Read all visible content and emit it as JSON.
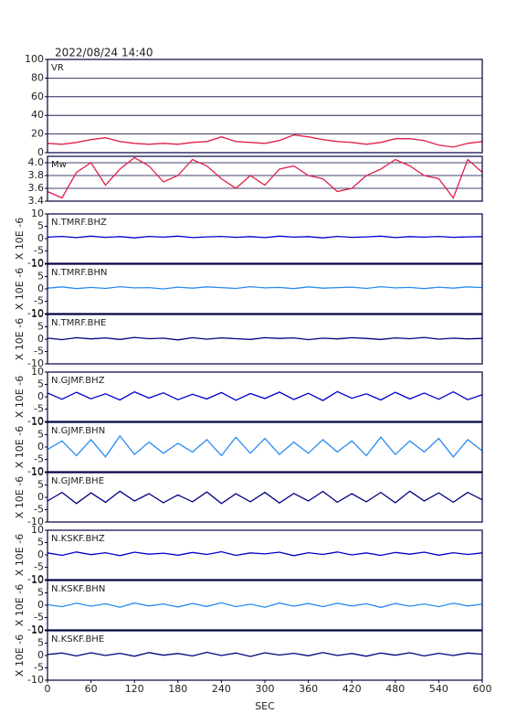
{
  "chart_data": [
    {
      "type": "line",
      "title": "2022/08/24 14:40",
      "label": "VR",
      "color": "#e0204a",
      "grid": true,
      "x": [
        0,
        20,
        40,
        60,
        80,
        100,
        120,
        140,
        160,
        180,
        200,
        220,
        240,
        260,
        280,
        300,
        320,
        340,
        360,
        380,
        400,
        420,
        440,
        460,
        480,
        500,
        520,
        540,
        560,
        580,
        600
      ],
      "values": [
        10,
        9,
        11,
        14,
        16,
        12,
        10,
        9,
        10,
        9,
        11,
        12,
        17,
        12,
        11,
        10,
        13,
        19,
        17,
        14,
        12,
        11,
        9,
        11,
        15,
        15,
        13,
        8,
        6,
        10,
        12
      ],
      "ylim": [
        0,
        100
      ],
      "yticks": [
        0,
        20,
        40,
        60,
        80,
        100
      ],
      "xlim": [
        0,
        600
      ]
    },
    {
      "type": "line",
      "label": "Mw",
      "color": "#e0204a",
      "grid": true,
      "x": [
        0,
        20,
        40,
        60,
        80,
        100,
        120,
        140,
        160,
        180,
        200,
        220,
        240,
        260,
        280,
        300,
        320,
        340,
        360,
        380,
        400,
        420,
        440,
        460,
        480,
        500,
        520,
        540,
        560,
        580,
        600
      ],
      "values": [
        3.55,
        3.45,
        3.85,
        4.0,
        3.65,
        3.9,
        4.08,
        3.95,
        3.7,
        3.8,
        4.05,
        3.95,
        3.75,
        3.6,
        3.8,
        3.65,
        3.9,
        3.95,
        3.8,
        3.75,
        3.55,
        3.6,
        3.8,
        3.9,
        4.05,
        3.95,
        3.8,
        3.75,
        3.45,
        4.05,
        3.85
      ],
      "ylim": [
        3.4,
        4.1
      ],
      "yticks": [
        3.4,
        3.6,
        3.8,
        {
          "value": 4.0,
          "label": "4.0"
        }
      ],
      "xlim": [
        0,
        600
      ]
    },
    {
      "type": "line",
      "label": "N.TMRF.BHZ",
      "ylabel": "X 10E -6",
      "color": "#0000cc",
      "grid": false,
      "x": [
        0,
        20,
        40,
        60,
        80,
        100,
        120,
        140,
        160,
        180,
        200,
        220,
        240,
        260,
        280,
        300,
        320,
        340,
        360,
        380,
        400,
        420,
        440,
        460,
        480,
        500,
        520,
        540,
        560,
        580,
        600
      ],
      "values": [
        0.6,
        0.9,
        0.4,
        1.0,
        0.5,
        0.8,
        0.3,
        0.9,
        0.6,
        1.0,
        0.4,
        0.7,
        0.9,
        0.5,
        0.8,
        0.4,
        1.0,
        0.6,
        0.8,
        0.3,
        0.9,
        0.5,
        0.7,
        1.0,
        0.4,
        0.8,
        0.6,
        0.9,
        0.5,
        0.7,
        0.8
      ],
      "ylim": [
        -10,
        10
      ],
      "yticks": [
        -10,
        -5,
        0,
        5,
        10
      ],
      "xlim": [
        0,
        600
      ]
    },
    {
      "type": "line",
      "label": "N.TMRF.BHN",
      "ylabel": "X 10E -6",
      "color": "#2a8cf0",
      "grid": false,
      "x": [
        0,
        20,
        40,
        60,
        80,
        100,
        120,
        140,
        160,
        180,
        200,
        220,
        240,
        260,
        280,
        300,
        320,
        340,
        360,
        380,
        400,
        420,
        440,
        460,
        480,
        500,
        520,
        540,
        560,
        580,
        600
      ],
      "values": [
        0.3,
        0.8,
        0.1,
        0.6,
        0.2,
        0.9,
        0.4,
        0.5,
        0.0,
        0.7,
        0.3,
        0.8,
        0.5,
        0.2,
        0.9,
        0.4,
        0.6,
        0.1,
        0.8,
        0.3,
        0.5,
        0.7,
        0.2,
        0.9,
        0.4,
        0.6,
        0.1,
        0.7,
        0.3,
        0.8,
        0.5
      ],
      "ylim": [
        -10,
        10
      ],
      "yticks": [
        -10,
        -5,
        0,
        5,
        10
      ],
      "xlim": [
        0,
        600
      ]
    },
    {
      "type": "line",
      "label": "N.TMRF.BHE",
      "ylabel": "X 10E -6",
      "color": "#000080",
      "grid": false,
      "x": [
        0,
        20,
        40,
        60,
        80,
        100,
        120,
        140,
        160,
        180,
        200,
        220,
        240,
        260,
        280,
        300,
        320,
        340,
        360,
        380,
        400,
        420,
        440,
        460,
        480,
        500,
        520,
        540,
        560,
        580,
        600
      ],
      "values": [
        0.4,
        -0.2,
        0.6,
        0.1,
        0.5,
        -0.1,
        0.7,
        0.2,
        0.4,
        -0.3,
        0.6,
        0.0,
        0.5,
        0.2,
        -0.1,
        0.6,
        0.3,
        0.5,
        -0.2,
        0.4,
        0.1,
        0.6,
        0.3,
        -0.1,
        0.5,
        0.2,
        0.7,
        0.0,
        0.4,
        0.1,
        0.3
      ],
      "ylim": [
        -10,
        10
      ],
      "yticks": [
        -10,
        -5,
        0,
        5,
        10
      ],
      "xlim": [
        0,
        600
      ]
    },
    {
      "type": "line",
      "label": "N.GJMF.BHZ",
      "ylabel": "X 10E -6",
      "color": "#0000cc",
      "grid": false,
      "x": [
        0,
        20,
        40,
        60,
        80,
        100,
        120,
        140,
        160,
        180,
        200,
        220,
        240,
        260,
        280,
        300,
        320,
        340,
        360,
        380,
        400,
        420,
        440,
        460,
        480,
        500,
        520,
        540,
        560,
        580,
        600
      ],
      "values": [
        1.5,
        -1.0,
        1.8,
        -0.8,
        1.2,
        -1.3,
        2.0,
        -0.5,
        1.6,
        -1.2,
        1.0,
        -0.9,
        1.7,
        -1.4,
        1.3,
        -0.7,
        1.9,
        -1.1,
        1.4,
        -1.5,
        2.1,
        -0.6,
        1.2,
        -1.3,
        1.8,
        -0.9,
        1.5,
        -1.0,
        2.0,
        -1.2,
        0.8
      ],
      "ylim": [
        -10,
        10
      ],
      "yticks": [
        -10,
        -5,
        0,
        5,
        10
      ],
      "xlim": [
        0,
        600
      ]
    },
    {
      "type": "line",
      "label": "N.GJMF.BHN",
      "ylabel": "X 10E -6",
      "color": "#2a8cf0",
      "grid": false,
      "x": [
        0,
        20,
        40,
        60,
        80,
        100,
        120,
        140,
        160,
        180,
        200,
        220,
        240,
        260,
        280,
        300,
        320,
        340,
        360,
        380,
        400,
        420,
        440,
        460,
        480,
        500,
        520,
        540,
        560,
        580,
        600
      ],
      "values": [
        -1,
        2.5,
        -3.5,
        3.0,
        -4.0,
        4.5,
        -3.0,
        2.0,
        -2.5,
        1.5,
        -2.0,
        3.0,
        -3.5,
        4.0,
        -2.5,
        3.5,
        -3.0,
        2.0,
        -2.5,
        3.0,
        -2.0,
        2.5,
        -3.5,
        4.0,
        -3.0,
        2.5,
        -2.0,
        3.5,
        -4.0,
        3.0,
        -1.5
      ],
      "ylim": [
        -10,
        10
      ],
      "yticks": [
        -10,
        -5,
        0,
        5,
        10
      ],
      "xlim": [
        0,
        600
      ]
    },
    {
      "type": "line",
      "label": "N.GJMF.BHE",
      "ylabel": "X 10E -6",
      "color": "#000080",
      "grid": false,
      "x": [
        0,
        20,
        40,
        60,
        80,
        100,
        120,
        140,
        160,
        180,
        200,
        220,
        240,
        260,
        280,
        300,
        320,
        340,
        360,
        380,
        400,
        420,
        440,
        460,
        480,
        500,
        520,
        540,
        560,
        580,
        600
      ],
      "values": [
        -1.5,
        2.0,
        -2.5,
        1.8,
        -2.0,
        2.5,
        -1.5,
        1.5,
        -2.2,
        1.0,
        -1.8,
        2.2,
        -2.5,
        1.5,
        -1.8,
        2.0,
        -2.3,
        1.6,
        -1.5,
        2.4,
        -2.0,
        1.5,
        -1.8,
        2.0,
        -2.2,
        2.5,
        -1.5,
        1.8,
        -2.0,
        2.0,
        -1.0
      ],
      "ylim": [
        -10,
        10
      ],
      "yticks": [
        -10,
        -5,
        0,
        5,
        10
      ],
      "xlim": [
        0,
        600
      ]
    },
    {
      "type": "line",
      "label": "N.KSKF.BHZ",
      "ylabel": "X 10E -6",
      "color": "#0000cc",
      "grid": false,
      "x": [
        0,
        20,
        40,
        60,
        80,
        100,
        120,
        140,
        160,
        180,
        200,
        220,
        240,
        260,
        280,
        300,
        320,
        340,
        360,
        380,
        400,
        420,
        440,
        460,
        480,
        500,
        520,
        540,
        560,
        580,
        600
      ],
      "values": [
        0.8,
        -0.2,
        1.2,
        0.1,
        0.9,
        -0.3,
        1.1,
        0.3,
        0.7,
        -0.1,
        1.0,
        0.2,
        1.3,
        -0.2,
        0.8,
        0.4,
        1.1,
        -0.3,
        0.9,
        0.2,
        1.2,
        0.0,
        0.8,
        -0.2,
        1.0,
        0.3,
        1.1,
        -0.1,
        0.9,
        0.2,
        0.8
      ],
      "ylim": [
        -10,
        10
      ],
      "yticks": [
        -10,
        -5,
        0,
        5,
        10
      ],
      "xlim": [
        0,
        600
      ]
    },
    {
      "type": "line",
      "label": "N.KSKF.BHN",
      "ylabel": "X 10E -6",
      "color": "#2a8cf0",
      "grid": false,
      "x": [
        0,
        20,
        40,
        60,
        80,
        100,
        120,
        140,
        160,
        180,
        200,
        220,
        240,
        260,
        280,
        300,
        320,
        340,
        360,
        380,
        400,
        420,
        440,
        460,
        480,
        500,
        520,
        540,
        560,
        580,
        600
      ],
      "values": [
        0.2,
        -0.6,
        0.8,
        -0.4,
        0.6,
        -0.8,
        0.9,
        -0.3,
        0.5,
        -0.7,
        0.7,
        -0.5,
        1.0,
        -0.6,
        0.4,
        -0.8,
        0.9,
        -0.4,
        0.7,
        -0.6,
        0.8,
        -0.3,
        0.6,
        -0.9,
        0.7,
        -0.4,
        0.5,
        -0.6,
        0.8,
        -0.3,
        0.4
      ],
      "ylim": [
        -10,
        10
      ],
      "yticks": [
        -10,
        -5,
        0,
        5,
        10
      ],
      "xlim": [
        0,
        600
      ]
    },
    {
      "type": "line",
      "label": "N.KSKF.BHE",
      "ylabel": "X 10E -6",
      "color": "#000080",
      "grid": false,
      "xlabel": "SEC",
      "x": [
        0,
        20,
        40,
        60,
        80,
        100,
        120,
        140,
        160,
        180,
        200,
        220,
        240,
        260,
        280,
        300,
        320,
        340,
        360,
        380,
        400,
        420,
        440,
        460,
        480,
        500,
        520,
        540,
        560,
        580,
        600
      ],
      "values": [
        0.4,
        1.0,
        -0.2,
        1.1,
        0.0,
        0.9,
        -0.3,
        1.2,
        0.1,
        0.8,
        -0.2,
        1.3,
        0.0,
        1.0,
        -0.4,
        1.1,
        0.2,
        0.9,
        -0.1,
        1.2,
        0.0,
        0.8,
        -0.3,
        1.0,
        0.1,
        1.1,
        -0.2,
        0.9,
        0.0,
        1.0,
        0.5
      ],
      "ylim": [
        -10,
        10
      ],
      "yticks": [
        -10,
        -5,
        0,
        5,
        10
      ],
      "xlim": [
        0,
        600
      ],
      "xticks": [
        0,
        60,
        120,
        180,
        240,
        300,
        360,
        420,
        480,
        540,
        600
      ]
    }
  ]
}
